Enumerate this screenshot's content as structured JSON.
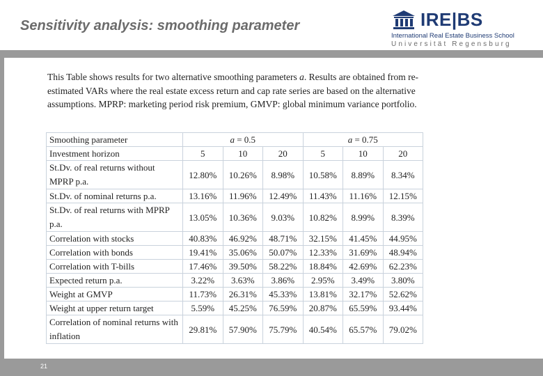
{
  "slide": {
    "title": "Sensitivity analysis: smoothing parameter",
    "page_number": "21"
  },
  "logo": {
    "name": "IRE|BS",
    "subtitle": "International Real Estate Business School",
    "university": "Universität Regensburg",
    "icon": "building-icon",
    "color": "#1f3b74"
  },
  "caption": "This Table shows results for two alternative smoothing parameters a. Results are obtained from re-estimated VARs where the real estate excess return and cap rate series are based on the alternative assumptions. MPRP: marketing period risk premium, GMVP: global minimum variance portfolio.",
  "table": {
    "header1": {
      "label": "Smoothing parameter",
      "group1": "a = 0.5",
      "group2": "a = 0.75"
    },
    "header2": {
      "label": "Investment horizon",
      "cols": [
        "5",
        "10",
        "20",
        "5",
        "10",
        "20"
      ]
    },
    "rows": [
      {
        "label": "St.Dv. of real returns without MPRP p.a.",
        "values": [
          "12.80%",
          "10.26%",
          "8.98%",
          "10.58%",
          "8.89%",
          "8.34%"
        ]
      },
      {
        "label": "St.Dv. of nominal returns p.a.",
        "values": [
          "13.16%",
          "11.96%",
          "12.49%",
          "11.43%",
          "11.16%",
          "12.15%"
        ]
      },
      {
        "label": "St.Dv. of real returns with MPRP p.a.",
        "values": [
          "13.05%",
          "10.36%",
          "9.03%",
          "10.82%",
          "8.99%",
          "8.39%"
        ]
      },
      {
        "label": "Correlation with stocks",
        "values": [
          "40.83%",
          "46.92%",
          "48.71%",
          "32.15%",
          "41.45%",
          "44.95%"
        ]
      },
      {
        "label": "Correlation with bonds",
        "values": [
          "19.41%",
          "35.06%",
          "50.07%",
          "12.33%",
          "31.69%",
          "48.94%"
        ]
      },
      {
        "label": "Correlation with T-bills",
        "values": [
          "17.46%",
          "39.50%",
          "58.22%",
          "18.84%",
          "42.69%",
          "62.23%"
        ]
      },
      {
        "label": "Expected return p.a.",
        "values": [
          "3.22%",
          "3.63%",
          "3.86%",
          "2.95%",
          "3.49%",
          "3.80%"
        ]
      },
      {
        "label": "Weight at GMVP",
        "values": [
          "11.73%",
          "26.31%",
          "45.33%",
          "13.81%",
          "32.17%",
          "52.62%"
        ]
      },
      {
        "label": "Weight at upper return target",
        "values": [
          "5.59%",
          "45.25%",
          "76.59%",
          "20.87%",
          "65.59%",
          "93.44%"
        ]
      },
      {
        "label": "Correlation of nominal returns with inflation",
        "values": [
          "29.81%",
          "57.90%",
          "75.79%",
          "40.54%",
          "65.57%",
          "79.02%"
        ]
      }
    ]
  }
}
